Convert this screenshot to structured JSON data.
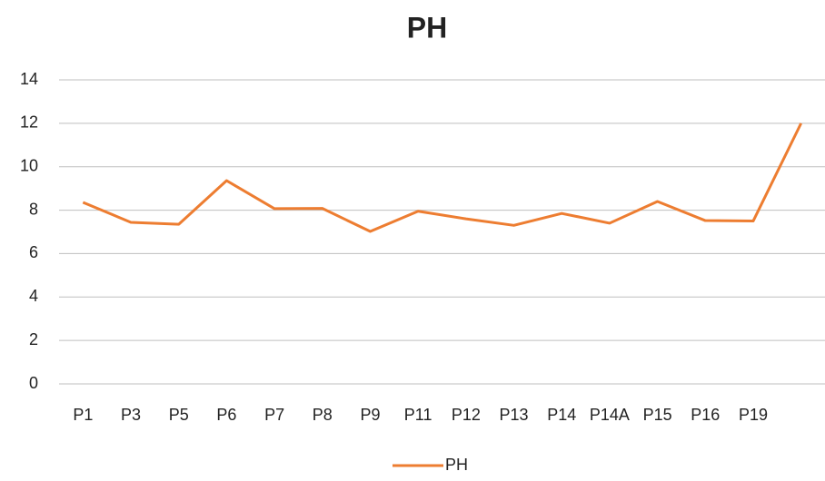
{
  "chart_data": {
    "type": "line",
    "title": "PH",
    "categories": [
      "P1",
      "P3",
      "P5",
      "P6",
      "P7",
      "P8",
      "P9",
      "P11",
      "P12",
      "P13",
      "P14",
      "P14A",
      "P15",
      "P16",
      "P19",
      null
    ],
    "series": [
      {
        "name": "PH",
        "color": "#ed7d31",
        "values": [
          8.36,
          7.44,
          7.35,
          9.36,
          8.07,
          8.08,
          7.02,
          7.95,
          7.6,
          7.3,
          7.85,
          7.4,
          8.4,
          7.52,
          7.5,
          12
        ]
      }
    ],
    "ylim": [
      0,
      14
    ],
    "yticks": [
      0,
      2,
      4,
      6,
      8,
      10,
      12,
      14
    ],
    "grid": true,
    "legend": "bottom"
  }
}
